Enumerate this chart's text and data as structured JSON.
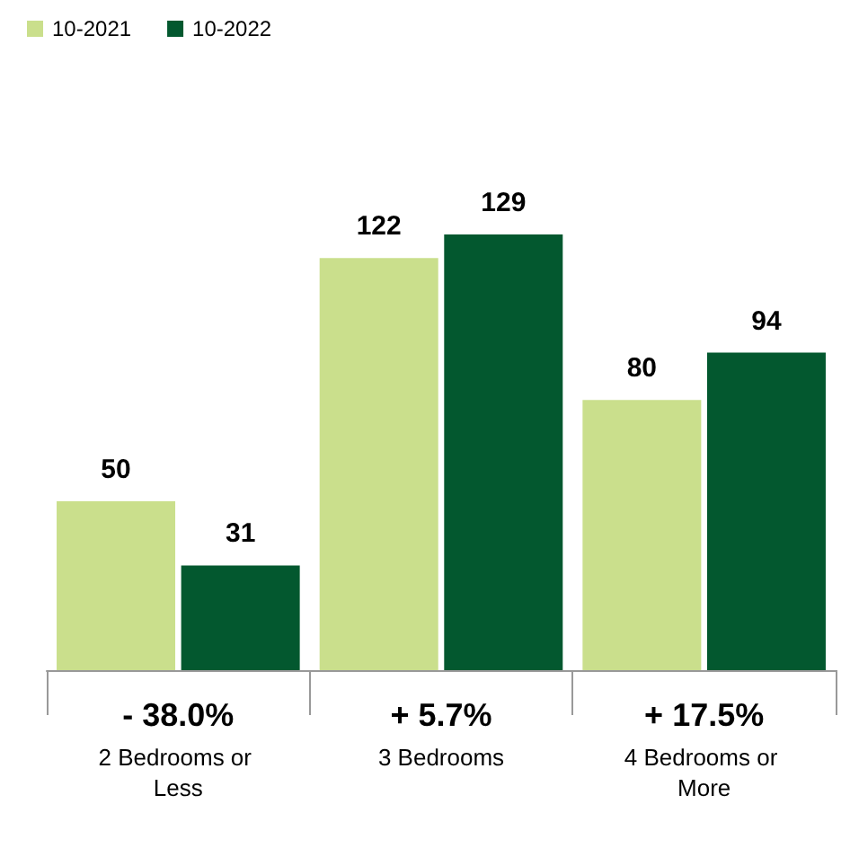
{
  "chart_data": {
    "type": "bar",
    "categories": [
      "2 Bedrooms or Less",
      "3 Bedrooms",
      "4 Bedrooms or More"
    ],
    "series": [
      {
        "name": "10-2021",
        "color": "#cadf8c",
        "values": [
          50,
          122,
          80
        ]
      },
      {
        "name": "10-2022",
        "color": "#03582f",
        "values": [
          31,
          129,
          94
        ]
      }
    ],
    "annotations": [
      "- 38.0%",
      "+ 5.7%",
      "+ 17.5%"
    ],
    "data_labels": true,
    "legend": "top left"
  }
}
